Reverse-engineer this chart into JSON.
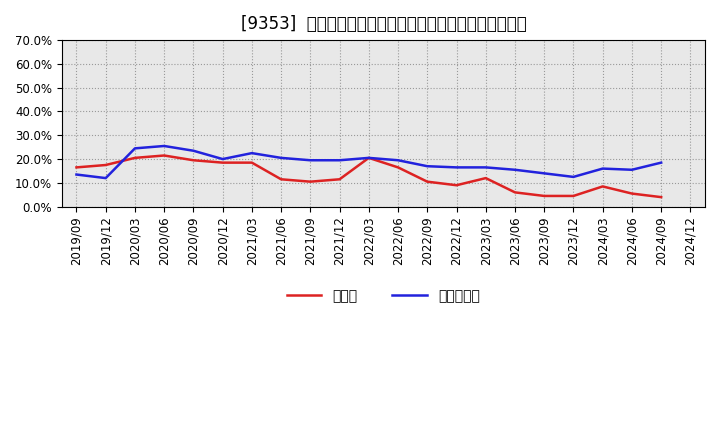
{
  "title": "[9353]  現預金、有利子負債の総資産に対する比率の推移",
  "ylim": [
    0.0,
    0.7
  ],
  "yticks": [
    0.0,
    0.1,
    0.2,
    0.3,
    0.4,
    0.5,
    0.6,
    0.7
  ],
  "ytick_labels": [
    "0.0%",
    "10.0%",
    "20.0%",
    "30.0%",
    "40.0%",
    "50.0%",
    "60.0%",
    "70.0%"
  ],
  "x_labels": [
    "2019/09",
    "2019/12",
    "2020/03",
    "2020/06",
    "2020/09",
    "2020/12",
    "2021/03",
    "2021/06",
    "2021/09",
    "2021/12",
    "2022/03",
    "2022/06",
    "2022/09",
    "2022/12",
    "2023/03",
    "2023/06",
    "2023/09",
    "2023/12",
    "2024/03",
    "2024/06",
    "2024/09",
    "2024/12"
  ],
  "cash_values": [
    0.165,
    0.175,
    0.205,
    0.215,
    0.195,
    0.185,
    0.185,
    0.115,
    0.105,
    0.115,
    0.205,
    0.165,
    0.105,
    0.09,
    0.12,
    0.06,
    0.045,
    0.045,
    0.085,
    0.055,
    0.04,
    null
  ],
  "debt_values": [
    0.135,
    0.12,
    0.245,
    0.255,
    0.235,
    0.2,
    0.225,
    0.205,
    0.195,
    0.195,
    0.205,
    0.195,
    0.17,
    0.165,
    0.165,
    0.155,
    0.14,
    0.125,
    0.16,
    0.155,
    0.185,
    null
  ],
  "cash_color": "#dd2222",
  "debt_color": "#2222dd",
  "legend_cash": "現預金",
  "legend_debt": "有利子負債",
  "background_color": "#ffffff",
  "plot_bg_color": "#e8e8e8",
  "grid_color": "#999999",
  "title_fontsize": 12,
  "tick_fontsize": 8.5,
  "legend_fontsize": 10
}
